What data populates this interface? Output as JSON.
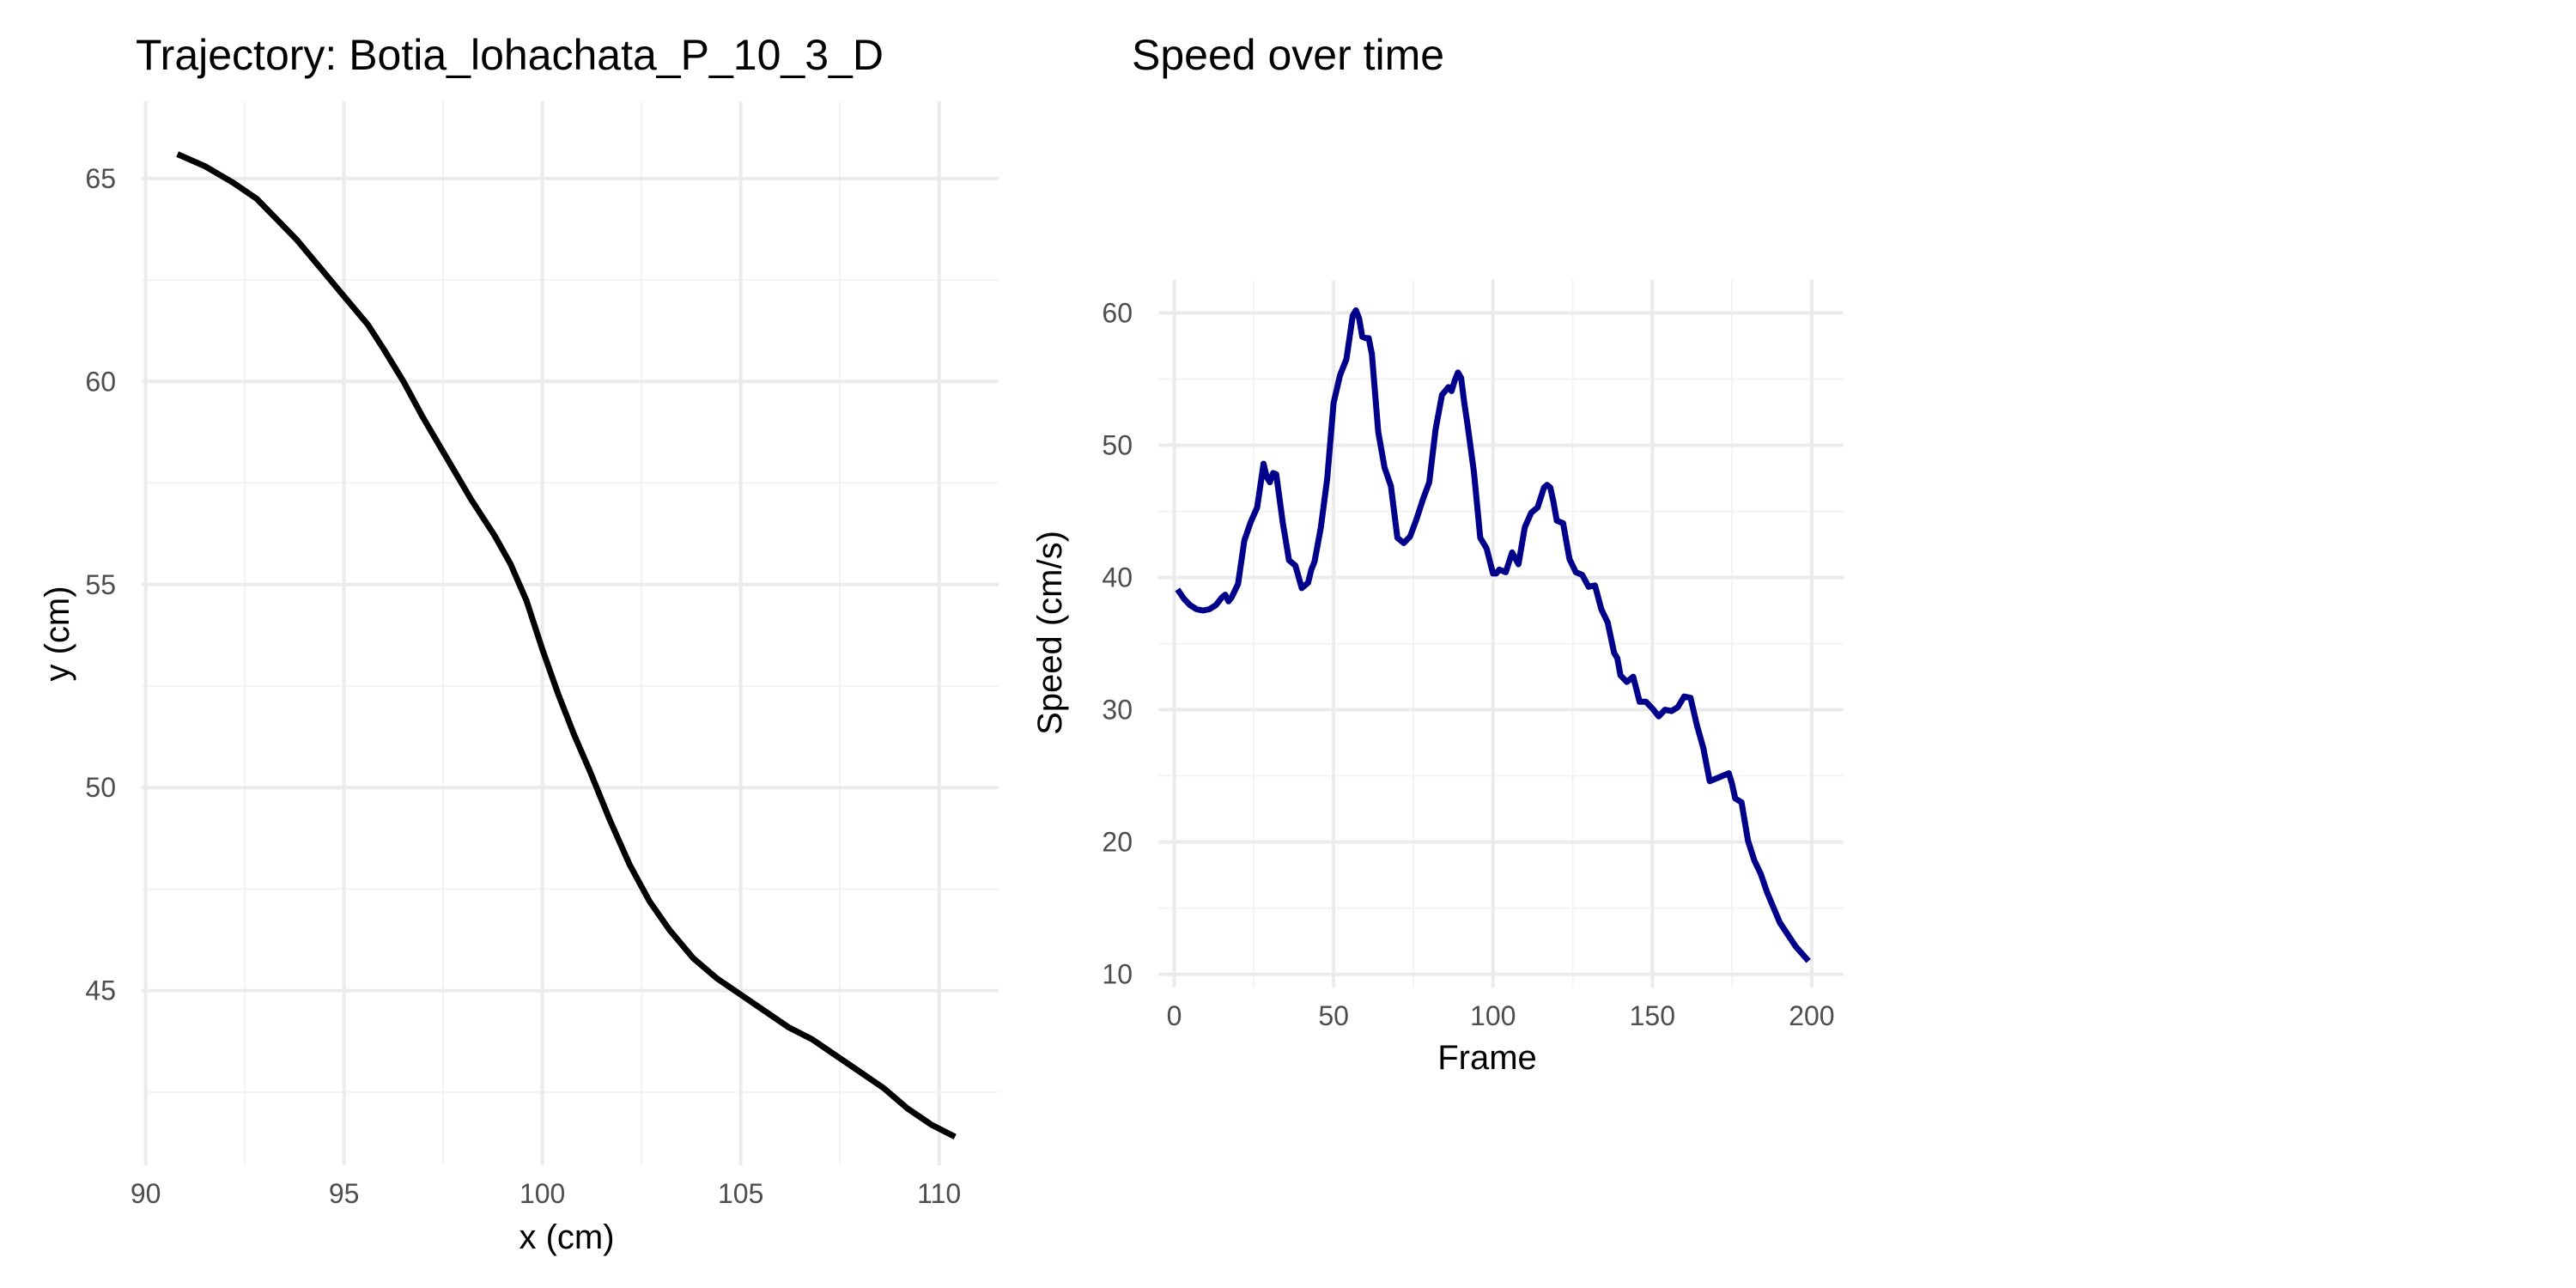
{
  "chart_data": [
    {
      "type": "line",
      "title": "Trajectory: Botia_lohachata_P_10_3_D",
      "xlabel": "x (cm)",
      "ylabel": "y (cm)",
      "xlim": [
        89.9,
        111.5
      ],
      "ylim": [
        40.7,
        66.9
      ],
      "x_ticks": [
        90,
        95,
        100,
        105,
        110
      ],
      "y_ticks": [
        45,
        50,
        55,
        60,
        65
      ],
      "x_tick_labels": [
        "90",
        "95",
        "100",
        "105",
        "110"
      ],
      "y_tick_labels": [
        "45",
        "50",
        "55",
        "60",
        "65"
      ],
      "grid": true,
      "legend": "none",
      "series": [
        {
          "color": "#000000",
          "x": [
            90.8,
            91.5,
            92.2,
            92.8,
            93.2,
            93.8,
            94.4,
            95.0,
            95.6,
            96.0,
            96.5,
            97.0,
            97.6,
            98.2,
            98.8,
            99.2,
            99.6,
            100.0,
            100.4,
            100.8,
            101.2,
            101.7,
            102.2,
            102.7,
            103.2,
            103.8,
            104.4,
            105.0,
            105.6,
            106.2,
            106.8,
            107.4,
            108.0,
            108.6,
            109.2,
            109.8,
            110.4
          ],
          "y": [
            65.6,
            65.3,
            64.9,
            64.5,
            64.1,
            63.5,
            62.8,
            62.1,
            61.4,
            60.8,
            60.0,
            59.1,
            58.1,
            57.1,
            56.2,
            55.5,
            54.6,
            53.4,
            52.3,
            51.3,
            50.4,
            49.2,
            48.1,
            47.2,
            46.5,
            45.8,
            45.3,
            44.9,
            44.5,
            44.1,
            43.8,
            43.4,
            43.0,
            42.6,
            42.1,
            41.7,
            41.4
          ]
        }
      ]
    },
    {
      "type": "line",
      "title": "Speed over time",
      "xlabel": "Frame",
      "ylabel": "Speed (cm/s)",
      "xlim": [
        -5,
        210
      ],
      "ylim": [
        9,
        62.5
      ],
      "x_ticks": [
        0,
        50,
        100,
        150,
        200
      ],
      "y_ticks": [
        10,
        20,
        30,
        40,
        50,
        60
      ],
      "x_tick_labels": [
        "0",
        "50",
        "100",
        "150",
        "200"
      ],
      "y_tick_labels": [
        "10",
        "20",
        "30",
        "40",
        "50",
        "60"
      ],
      "grid": true,
      "legend": "none",
      "series": [
        {
          "color": "#00008b",
          "x": [
            1,
            3,
            5,
            7,
            9,
            11,
            13,
            15,
            16,
            17,
            18,
            20,
            22,
            24,
            26,
            28,
            29,
            30,
            31,
            32,
            34,
            36,
            38,
            40,
            42,
            43,
            44,
            46,
            48,
            50,
            52,
            54,
            56,
            57,
            58,
            59,
            60,
            61,
            62,
            64,
            66,
            68,
            70,
            72,
            74,
            76,
            78,
            80,
            82,
            84,
            86,
            87,
            88,
            89,
            90,
            91,
            92,
            94,
            96,
            98,
            100,
            101,
            102,
            104,
            106,
            108,
            110,
            112,
            114,
            116,
            117,
            118,
            119,
            120,
            122,
            124,
            126,
            128,
            130,
            132,
            134,
            136,
            138,
            139,
            140,
            142,
            144,
            146,
            148,
            150,
            152,
            154,
            156,
            158,
            160,
            162,
            164,
            166,
            168,
            170,
            172,
            174,
            175,
            176,
            178,
            180,
            182,
            184,
            186,
            190,
            195,
            199
          ],
          "y": [
            39.1,
            38.4,
            37.9,
            37.6,
            37.5,
            37.6,
            37.9,
            38.5,
            38.7,
            38.2,
            38.5,
            39.5,
            42.8,
            44.2,
            45.3,
            48.6,
            47.6,
            47.2,
            47.9,
            47.8,
            44.2,
            41.3,
            40.9,
            39.2,
            39.6,
            40.6,
            41.2,
            43.8,
            47.5,
            53.2,
            55.3,
            56.5,
            59.8,
            60.2,
            59.6,
            58.2,
            58.1,
            58.1,
            56.9,
            51.0,
            48.3,
            46.9,
            43.0,
            42.6,
            43.1,
            44.4,
            45.9,
            47.2,
            51.2,
            53.8,
            54.4,
            54.1,
            54.9,
            55.5,
            55.1,
            53.2,
            51.6,
            48.0,
            43.0,
            42.2,
            40.3,
            40.3,
            40.6,
            40.4,
            41.9,
            41.0,
            43.8,
            44.9,
            45.3,
            46.8,
            47.0,
            46.8,
            45.7,
            44.3,
            44.1,
            41.4,
            40.4,
            40.2,
            39.3,
            39.4,
            37.6,
            36.6,
            34.3,
            33.9,
            32.6,
            32.1,
            32.5,
            30.6,
            30.6,
            30.1,
            29.5,
            30.0,
            29.9,
            30.2,
            31.0,
            30.9,
            28.8,
            27.1,
            24.6,
            24.8,
            25.0,
            25.2,
            24.4,
            23.3,
            23.0,
            20.1,
            18.6,
            17.6,
            16.2,
            13.9,
            12.1,
            11.0
          ]
        }
      ]
    }
  ]
}
